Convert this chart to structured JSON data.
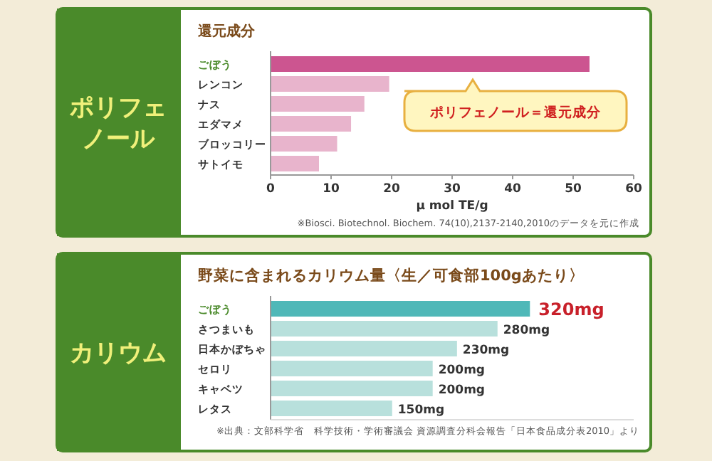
{
  "chart_data": [
    {
      "type": "bar",
      "orientation": "horizontal",
      "title": "ポリフェノール",
      "subtitle": "還元成分",
      "categories": [
        "ごぼう",
        "レンコン",
        "ナス",
        "エダマメ",
        "ブロッコリー",
        "サトイモ"
      ],
      "values": [
        52.7,
        19.6,
        15.5,
        13.3,
        11.0,
        8.0
      ],
      "colors": [
        "#cc5590",
        "#e8b4cc",
        "#e8b4cc",
        "#e8b4cc",
        "#e8b4cc",
        "#e8b4cc"
      ],
      "xlim": [
        0,
        60
      ],
      "xticks": [
        0,
        10,
        20,
        30,
        40,
        50,
        60
      ],
      "xlabel": "µ mol TE/g",
      "annotations": [
        "ポリフェノール＝還元成分",
        "※Biosci. Biotechnol. Biochem. 74(10),2137-2140,2010のデータを元に作成"
      ]
    },
    {
      "type": "bar",
      "orientation": "horizontal",
      "title": "カリウム",
      "subtitle": "野菜に含まれるカリウム量〈生／可食部100gあたり〉",
      "categories": [
        "ごぼう",
        "さつまいも",
        "日本かぼちゃ",
        "セロリ",
        "キャベツ",
        "レタス"
      ],
      "values": [
        320,
        280,
        230,
        200,
        200,
        150
      ],
      "colors": [
        "#4fb8b8",
        "#b8e0dc",
        "#b8e0dc",
        "#b8e0dc",
        "#b8e0dc",
        "#b8e0dc"
      ],
      "value_labels": [
        "320mg",
        "280mg",
        "230mg",
        "200mg",
        "200mg",
        "150mg"
      ],
      "annotations": [
        "※出典：文部科学省　科学技術・学術審議会 資源調査分科会報告「日本食品成分表2010」より"
      ]
    }
  ]
}
